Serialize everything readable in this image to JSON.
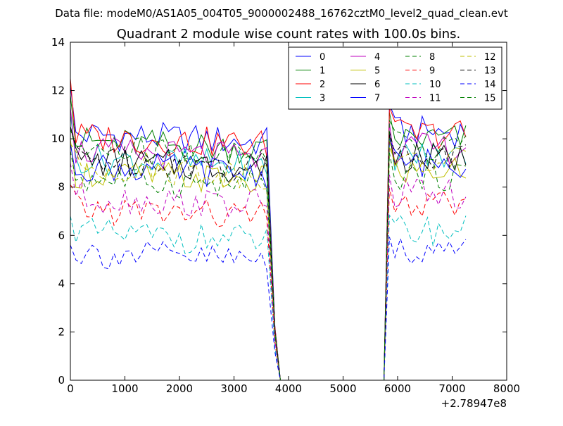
{
  "figure": {
    "suptitle": "Data file: modeM0/AS1A05_004T05_9000002488_16762cztM0_level2_quad_clean.evt"
  },
  "chart_data": {
    "type": "line",
    "title": "Quadrant 2 module wise count rates with 100.0s bins.",
    "xlabel": "",
    "ylabel": "",
    "x_offset_label": "+2.78947e8",
    "xlim": [
      0,
      8000
    ],
    "ylim": [
      0,
      14
    ],
    "xticks": [
      0,
      1000,
      2000,
      3000,
      4000,
      5000,
      6000,
      7000,
      8000
    ],
    "yticks": [
      0,
      2,
      4,
      6,
      8,
      10,
      12,
      14
    ],
    "grid": false,
    "legend_position": "top-right",
    "legend_columns": 4,
    "segments": [
      {
        "x_start": 0,
        "x_end": 3650,
        "step": 100
      },
      {
        "x_start": 5850,
        "x_end": 7250,
        "step": 100
      }
    ],
    "drop_x": [
      3750,
      3850
    ],
    "rise_x": [
      5750,
      5850
    ],
    "gap_x": [
      3850,
      5750
    ],
    "series": [
      {
        "name": "0",
        "color": "#0000ff",
        "style": "solid",
        "level": 10.2,
        "start": 12.2
      },
      {
        "name": "1",
        "color": "#008000",
        "style": "solid",
        "level": 9.9,
        "start": 11.8
      },
      {
        "name": "2",
        "color": "#ff0000",
        "style": "solid",
        "level": 10.1,
        "start": 12.5
      },
      {
        "name": "3",
        "color": "#00bfbf",
        "style": "solid",
        "level": 9.2,
        "start": 11.0
      },
      {
        "name": "4",
        "color": "#bf00bf",
        "style": "solid",
        "level": 9.5,
        "start": 11.3
      },
      {
        "name": "5",
        "color": "#bfbf00",
        "style": "solid",
        "level": 8.6,
        "start": 10.0
      },
      {
        "name": "6",
        "color": "#000000",
        "style": "solid",
        "level": 9.1,
        "start": 10.5
      },
      {
        "name": "7",
        "color": "#0000ff",
        "style": "solid",
        "level": 8.9,
        "start": 9.8
      },
      {
        "name": "8",
        "color": "#008000",
        "style": "dashed",
        "level": 8.4,
        "start": 9.5
      },
      {
        "name": "9",
        "color": "#ff0000",
        "style": "dashed",
        "level": 7.1,
        "start": 8.1
      },
      {
        "name": "10",
        "color": "#00bfbf",
        "style": "dashed",
        "level": 6.1,
        "start": 6.8
      },
      {
        "name": "11",
        "color": "#bf00bf",
        "style": "dashed",
        "level": 7.6,
        "start": 9.0
      },
      {
        "name": "12",
        "color": "#bfbf00",
        "style": "dashed",
        "level": 8.9,
        "start": 9.8
      },
      {
        "name": "13",
        "color": "#000000",
        "style": "dashed",
        "level": 9.2,
        "start": 10.5
      },
      {
        "name": "14",
        "color": "#0000ff",
        "style": "dashed",
        "level": 5.3,
        "start": 5.6
      },
      {
        "name": "15",
        "color": "#008000",
        "style": "dashed",
        "level": 9.6,
        "start": 10.4
      }
    ]
  }
}
